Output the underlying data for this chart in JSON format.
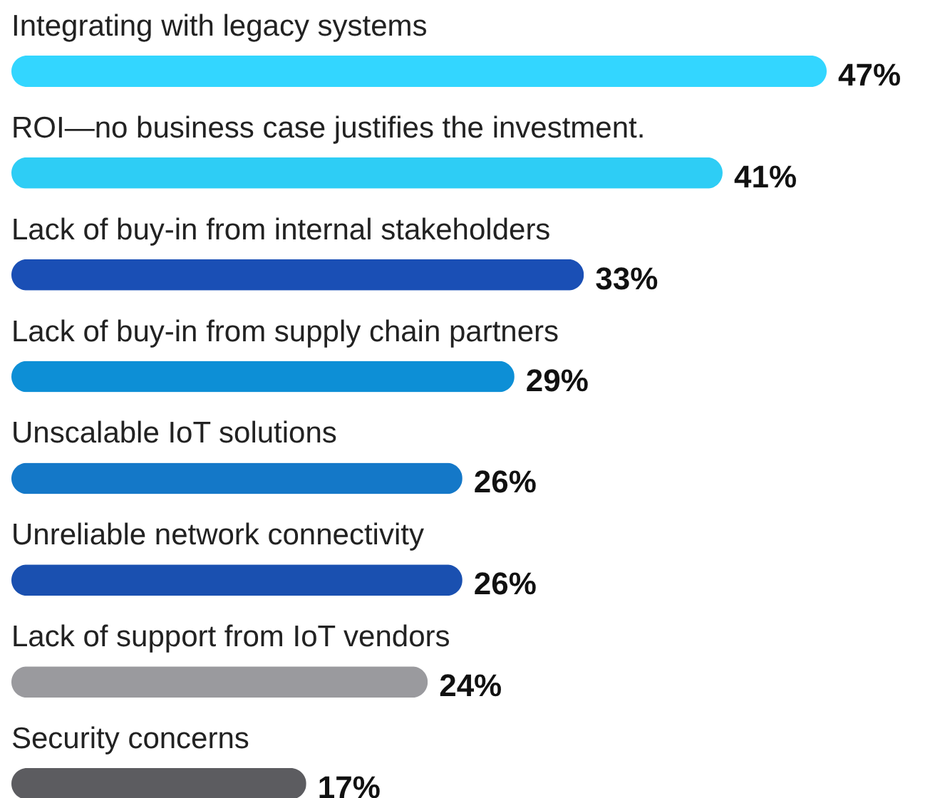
{
  "chart_data": {
    "type": "bar",
    "orientation": "horizontal",
    "categories": [
      "Integrating with legacy systems",
      "ROI—no business case justifies the investment.",
      "Lack of buy-in from internal stakeholders",
      "Lack of buy-in from supply chain partners",
      "Unscalable IoT solutions",
      "Unreliable network connectivity",
      "Lack of support from IoT vendors",
      "Security concerns"
    ],
    "values": [
      47,
      41,
      33,
      29,
      26,
      26,
      24,
      17
    ],
    "value_labels": [
      "47%",
      "41%",
      "33%",
      "29%",
      "26%",
      "26%",
      "24%",
      "17%"
    ],
    "colors": [
      "#33d6ff",
      "#2ecdf5",
      "#1a4fb5",
      "#0d8fd6",
      "#1478c8",
      "#1a50b0",
      "#9a9a9e",
      "#5c5c60"
    ]
  }
}
